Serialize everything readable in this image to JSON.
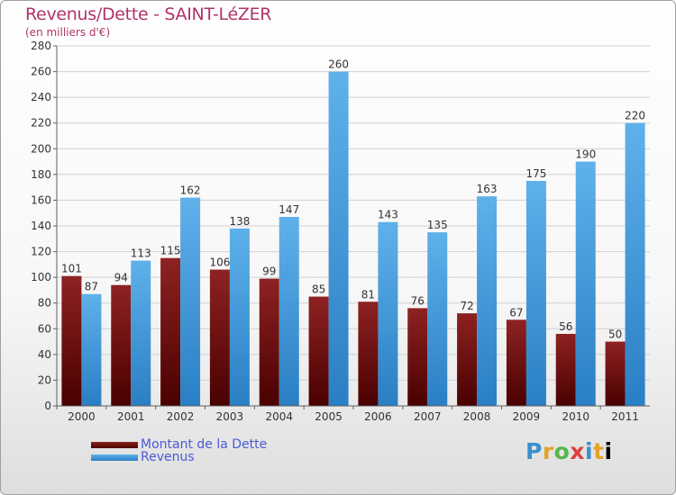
{
  "title": "Revenus/Dette - SAINT-LéZER",
  "subtitle": "(en milliers d'€)",
  "logo_text": "Proxiti",
  "colors": {
    "dette": "#6b0a0a",
    "revenus": "#3c9be0",
    "title": "#b0336a",
    "legend_text": "#4a5ad8"
  },
  "chart_data": {
    "type": "bar",
    "categories": [
      "2000",
      "2001",
      "2002",
      "2003",
      "2004",
      "2005",
      "2006",
      "2007",
      "2008",
      "2009",
      "2010",
      "2011"
    ],
    "series": [
      {
        "name": "Montant de la Dette",
        "values": [
          101,
          94,
          115,
          106,
          99,
          85,
          81,
          76,
          72,
          67,
          56,
          50
        ]
      },
      {
        "name": "Revenus",
        "values": [
          87,
          113,
          162,
          138,
          147,
          260,
          143,
          135,
          163,
          175,
          190,
          220
        ]
      }
    ],
    "ylim": [
      0,
      280
    ],
    "yticks": [
      0,
      20,
      40,
      60,
      80,
      100,
      120,
      140,
      160,
      180,
      200,
      220,
      240,
      260,
      280
    ],
    "grid": true,
    "legend_position": "bottom-left"
  }
}
